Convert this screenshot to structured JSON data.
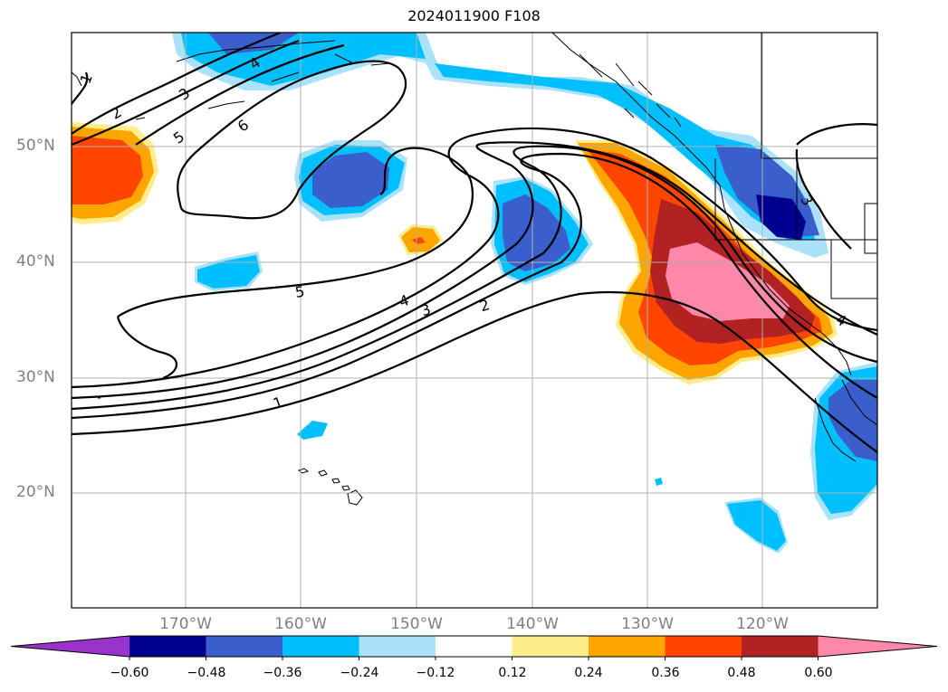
{
  "title": "2024011900 F108",
  "lat_labels": [
    "50°N",
    "40°N",
    "30°N",
    "20°N"
  ],
  "lon_labels": [
    "170°W",
    "160°W",
    "150°W",
    "140°W",
    "130°W",
    "120°W"
  ],
  "contour_labels": [
    "1",
    "2",
    "3",
    "4",
    "5",
    "6"
  ],
  "colorbar": {
    "colors": [
      "#9933cc",
      "#000090",
      "#3a5fcd",
      "#00bfff",
      "#aae2fa",
      "#ffffff",
      "#ffec8b",
      "#ffa500",
      "#ff4500",
      "#b22222",
      "#ff88aa"
    ],
    "tick_labels": [
      "−0.60",
      "−0.48",
      "−0.36",
      "−0.24",
      "−0.12",
      "0.12",
      "0.24",
      "0.36",
      "0.48",
      "0.60"
    ]
  }
}
